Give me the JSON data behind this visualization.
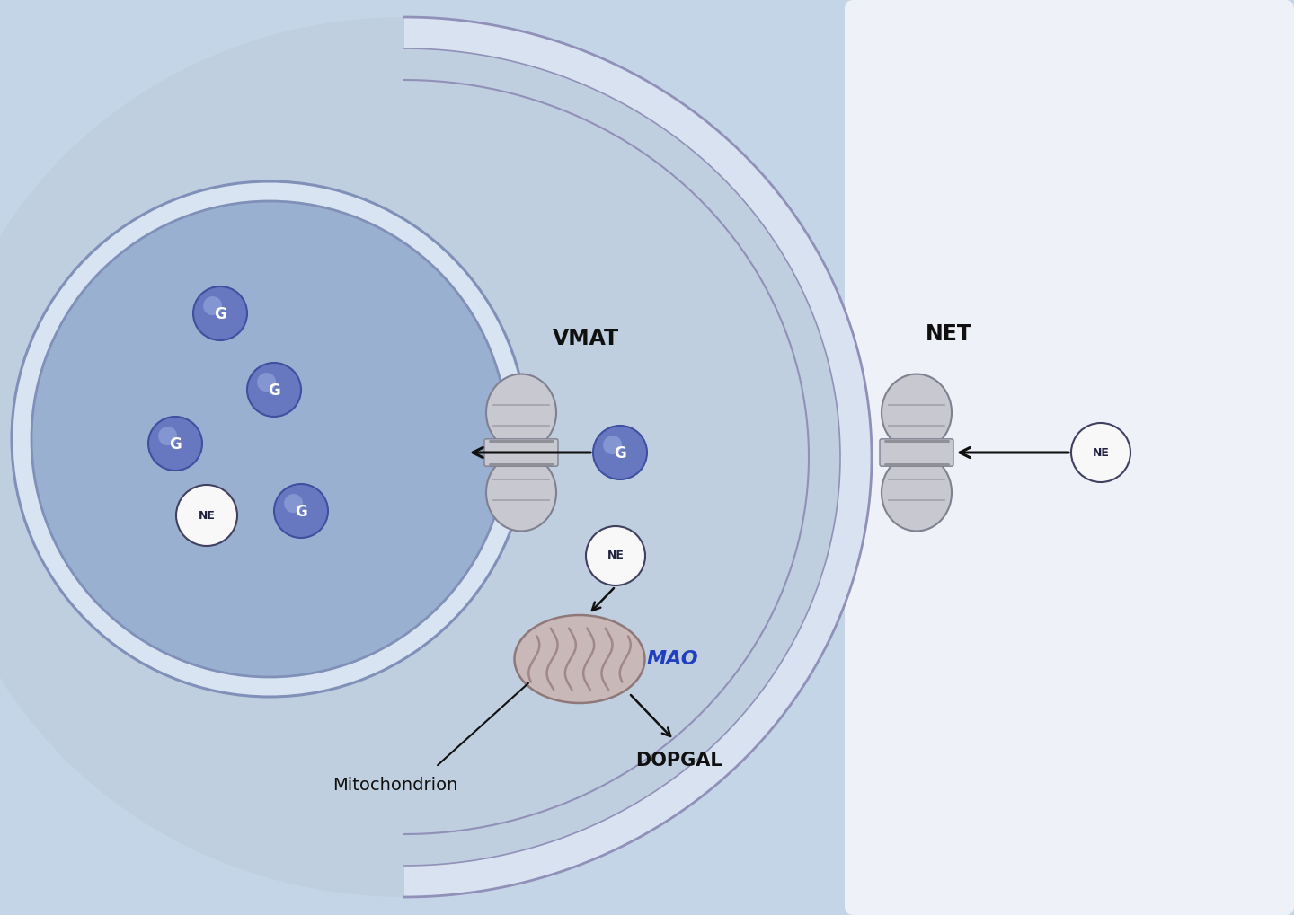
{
  "bg_outer": "#c5d5e8",
  "bg_cytosol": "#c0cfdf",
  "bg_right_area": "#eef2f8",
  "membrane_band_color": "#d8e2f0",
  "membrane_border_color": "#9090b8",
  "nucleus_ring_color": "#d8e4f2",
  "nucleus_fill": "#9ab0d0",
  "nucleus_outline": "#8090b8",
  "transporter_fill": "#c8c8d0",
  "transporter_stripe": "#909098",
  "transporter_outline": "#808090",
  "G_ball_fill": "#6878c0",
  "G_ball_grad": "#9ab0e0",
  "G_ball_outline": "#4050a0",
  "G_text_color": "#ffffff",
  "NE_ball_fill": "#f8f8f8",
  "NE_ball_outline": "#404060",
  "NE_text_color": "#202040",
  "mito_fill": "#c8b8b8",
  "mito_outline": "#907878",
  "mito_stripe_color": "#a08888",
  "arrow_color": "#101010",
  "label_color": "#101010",
  "MAO_color": "#2040c0",
  "VMAT_label": "VMAT",
  "NET_label": "NET",
  "MAO_label": "MAO",
  "DOPGAL_label": "DOPGAL",
  "Mito_label": "Mitochondrion",
  "figsize": [
    14.4,
    10.19
  ],
  "dpi": 100
}
